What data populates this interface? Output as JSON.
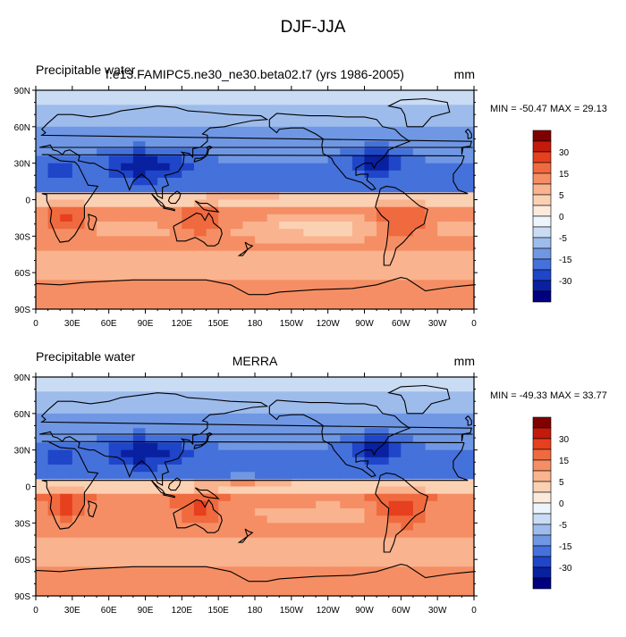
{
  "main_title": "DJF-JJA",
  "panels": [
    {
      "left_label": "Precipitable water",
      "center_label": "f.e13.FAMIPC5.ne30_ne30.beta02.t7 (yrs 1986-2005)",
      "right_label": "mm",
      "minmax": "MIN = -50.47 MAX =  29.13"
    },
    {
      "left_label": "Precipitable water",
      "center_label": "MERRA",
      "right_label": "mm",
      "minmax": "MIN = -49.33 MAX =  33.77"
    }
  ],
  "axes": {
    "lat_ticks": [
      "90N",
      "60N",
      "30N",
      "0",
      "30S",
      "60S",
      "90S"
    ],
    "lat_values": [
      90,
      60,
      30,
      0,
      -30,
      -60,
      -90
    ],
    "lon_ticks": [
      "0",
      "30E",
      "60E",
      "90E",
      "120E",
      "150E",
      "180",
      "150W",
      "120W",
      "90W",
      "60W",
      "30W",
      "0"
    ],
    "lon_values": [
      0,
      30,
      60,
      90,
      120,
      150,
      180,
      210,
      240,
      270,
      300,
      330,
      360
    ]
  },
  "colorbar": {
    "labels": [
      "30",
      "15",
      "5",
      "0",
      "-5",
      "-15",
      "-30"
    ],
    "colors": [
      "#800000",
      "#c41a0c",
      "#e6401f",
      "#f06a3f",
      "#f58e64",
      "#f9b38e",
      "#fbd1b4",
      "#fcebdd",
      "#eef4fb",
      "#c9dcf4",
      "#9dbcec",
      "#6f97e3",
      "#4571db",
      "#1f45c9",
      "#0920a0",
      "#000080"
    ]
  },
  "chart_data": [
    {
      "type": "heatmap",
      "title": "Precipitable water",
      "subtitle": "f.e13.FAMIPC5.ne30_ne30.beta02.t7 (yrs 1986-2005)",
      "units": "mm",
      "min": -50.47,
      "max": 29.13,
      "x_range": [
        0,
        360
      ],
      "y_range": [
        -90,
        90
      ],
      "contour_levels": [
        -35,
        -30,
        -25,
        -20,
        -15,
        -10,
        -5,
        -2.5,
        0,
        2.5,
        5,
        10,
        15,
        20,
        25,
        30,
        35
      ]
    },
    {
      "type": "heatmap",
      "title": "Precipitable water",
      "subtitle": "MERRA",
      "units": "mm",
      "min": -49.33,
      "max": 33.77,
      "x_range": [
        0,
        360
      ],
      "y_range": [
        -90,
        90
      ],
      "contour_levels": [
        -35,
        -30,
        -25,
        -20,
        -15,
        -10,
        -5,
        -2.5,
        0,
        2.5,
        5,
        10,
        15,
        20,
        25,
        30,
        35
      ]
    }
  ]
}
